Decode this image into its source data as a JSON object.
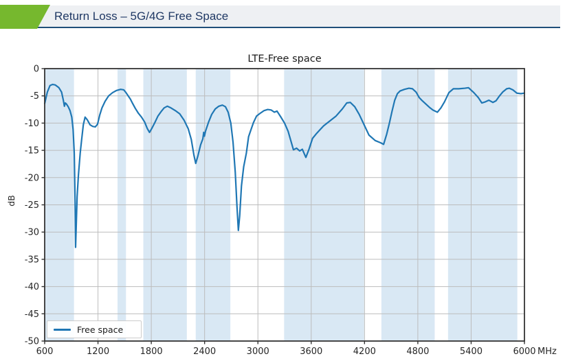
{
  "header": {
    "title": "Return Loss – 5G/4G Free Space",
    "accent_color": "#76b82e",
    "bar_color": "#eef0f3",
    "underline_color": "#1f4e79",
    "text_color": "#1f3864"
  },
  "chart_data": {
    "type": "line",
    "title": "LTE-Free space",
    "ylabel": "dB",
    "x_unit": "MHz",
    "xlim": [
      600,
      6000
    ],
    "ylim": [
      -50,
      0
    ],
    "grid": true,
    "x_ticks": [
      600,
      1200,
      1800,
      2400,
      3000,
      3600,
      4200,
      4800,
      5400,
      6000
    ],
    "y_ticks": [
      0,
      -5,
      -10,
      -15,
      -20,
      -25,
      -30,
      -35,
      -40,
      -45,
      -50
    ],
    "legend": {
      "position": "lower left",
      "entries": [
        "Free space"
      ]
    },
    "line_color": "#1f77b4",
    "band_color": "#d9e8f4",
    "grid_color": "#bcbcbc",
    "spine_color": "#333333",
    "tick_text_color": "#262626",
    "shaded_bands_mhz": [
      [
        600,
        930
      ],
      [
        1420,
        1515
      ],
      [
        1710,
        2200
      ],
      [
        2300,
        2690
      ],
      [
        3295,
        4195
      ],
      [
        4390,
        4990
      ],
      [
        5140,
        5920
      ]
    ],
    "series": [
      {
        "name": "Free space",
        "points": [
          [
            600,
            -6.4
          ],
          [
            630,
            -4.3
          ],
          [
            660,
            -3.1
          ],
          [
            690,
            -2.9
          ],
          [
            720,
            -3.0
          ],
          [
            760,
            -3.5
          ],
          [
            790,
            -4.3
          ],
          [
            810,
            -5.8
          ],
          [
            822,
            -6.9
          ],
          [
            832,
            -6.3
          ],
          [
            845,
            -6.5
          ],
          [
            865,
            -7.0
          ],
          [
            885,
            -7.7
          ],
          [
            905,
            -8.9
          ],
          [
            920,
            -11.2
          ],
          [
            933,
            -15.5
          ],
          [
            942,
            -24.0
          ],
          [
            948,
            -32.8
          ],
          [
            955,
            -29.0
          ],
          [
            965,
            -23.5
          ],
          [
            980,
            -19.5
          ],
          [
            1000,
            -15.5
          ],
          [
            1015,
            -13.2
          ],
          [
            1035,
            -10.3
          ],
          [
            1055,
            -8.9
          ],
          [
            1080,
            -9.4
          ],
          [
            1110,
            -10.3
          ],
          [
            1140,
            -10.6
          ],
          [
            1170,
            -10.7
          ],
          [
            1195,
            -10.2
          ],
          [
            1220,
            -8.5
          ],
          [
            1245,
            -7.2
          ],
          [
            1280,
            -6.0
          ],
          [
            1320,
            -5.0
          ],
          [
            1365,
            -4.4
          ],
          [
            1410,
            -4.0
          ],
          [
            1455,
            -3.8
          ],
          [
            1490,
            -3.9
          ],
          [
            1515,
            -4.4
          ],
          [
            1540,
            -5.0
          ],
          [
            1565,
            -5.6
          ],
          [
            1590,
            -6.4
          ],
          [
            1620,
            -7.3
          ],
          [
            1655,
            -8.2
          ],
          [
            1690,
            -8.9
          ],
          [
            1725,
            -9.8
          ],
          [
            1755,
            -11.0
          ],
          [
            1780,
            -11.7
          ],
          [
            1805,
            -11.0
          ],
          [
            1840,
            -9.9
          ],
          [
            1875,
            -8.7
          ],
          [
            1910,
            -7.9
          ],
          [
            1945,
            -7.2
          ],
          [
            1980,
            -6.9
          ],
          [
            2020,
            -7.2
          ],
          [
            2070,
            -7.7
          ],
          [
            2120,
            -8.3
          ],
          [
            2170,
            -9.5
          ],
          [
            2215,
            -11.0
          ],
          [
            2250,
            -13.0
          ],
          [
            2280,
            -15.9
          ],
          [
            2300,
            -17.4
          ],
          [
            2325,
            -16.0
          ],
          [
            2355,
            -14.0
          ],
          [
            2380,
            -12.9
          ],
          [
            2390,
            -11.7
          ],
          [
            2398,
            -12.4
          ],
          [
            2410,
            -11.5
          ],
          [
            2445,
            -9.8
          ],
          [
            2480,
            -8.4
          ],
          [
            2520,
            -7.4
          ],
          [
            2560,
            -6.9
          ],
          [
            2600,
            -6.7
          ],
          [
            2635,
            -7.0
          ],
          [
            2665,
            -8.0
          ],
          [
            2695,
            -10.0
          ],
          [
            2720,
            -13.5
          ],
          [
            2745,
            -19.0
          ],
          [
            2765,
            -25.5
          ],
          [
            2780,
            -29.7
          ],
          [
            2795,
            -27.0
          ],
          [
            2815,
            -21.5
          ],
          [
            2840,
            -18.0
          ],
          [
            2870,
            -15.5
          ],
          [
            2895,
            -12.5
          ],
          [
            2920,
            -11.3
          ],
          [
            2950,
            -9.9
          ],
          [
            2985,
            -8.7
          ],
          [
            3025,
            -8.2
          ],
          [
            3070,
            -7.7
          ],
          [
            3110,
            -7.5
          ],
          [
            3150,
            -7.6
          ],
          [
            3185,
            -8.0
          ],
          [
            3215,
            -7.8
          ],
          [
            3255,
            -8.8
          ],
          [
            3300,
            -10.0
          ],
          [
            3340,
            -11.5
          ],
          [
            3370,
            -13.2
          ],
          [
            3400,
            -14.9
          ],
          [
            3435,
            -14.6
          ],
          [
            3470,
            -15.1
          ],
          [
            3500,
            -14.8
          ],
          [
            3540,
            -16.3
          ],
          [
            3575,
            -14.8
          ],
          [
            3615,
            -12.8
          ],
          [
            3655,
            -12.0
          ],
          [
            3700,
            -11.2
          ],
          [
            3740,
            -10.5
          ],
          [
            3810,
            -9.6
          ],
          [
            3880,
            -8.7
          ],
          [
            3950,
            -7.4
          ],
          [
            4000,
            -6.3
          ],
          [
            4040,
            -6.2
          ],
          [
            4090,
            -7.0
          ],
          [
            4140,
            -8.4
          ],
          [
            4195,
            -10.3
          ],
          [
            4250,
            -12.2
          ],
          [
            4320,
            -13.2
          ],
          [
            4380,
            -13.6
          ],
          [
            4415,
            -13.9
          ],
          [
            4450,
            -12.0
          ],
          [
            4480,
            -10.0
          ],
          [
            4510,
            -7.8
          ],
          [
            4540,
            -5.8
          ],
          [
            4570,
            -4.6
          ],
          [
            4600,
            -4.1
          ],
          [
            4650,
            -3.8
          ],
          [
            4700,
            -3.6
          ],
          [
            4740,
            -3.7
          ],
          [
            4780,
            -4.3
          ],
          [
            4815,
            -5.3
          ],
          [
            4850,
            -5.9
          ],
          [
            4890,
            -6.5
          ],
          [
            4930,
            -7.1
          ],
          [
            4970,
            -7.6
          ],
          [
            5020,
            -8.0
          ],
          [
            5060,
            -7.2
          ],
          [
            5100,
            -6.1
          ],
          [
            5150,
            -4.4
          ],
          [
            5200,
            -3.7
          ],
          [
            5260,
            -3.7
          ],
          [
            5330,
            -3.6
          ],
          [
            5370,
            -3.5
          ],
          [
            5430,
            -4.4
          ],
          [
            5480,
            -5.3
          ],
          [
            5520,
            -6.3
          ],
          [
            5560,
            -6.1
          ],
          [
            5600,
            -5.8
          ],
          [
            5645,
            -6.2
          ],
          [
            5680,
            -5.9
          ],
          [
            5715,
            -5.1
          ],
          [
            5755,
            -4.3
          ],
          [
            5800,
            -3.7
          ],
          [
            5830,
            -3.6
          ],
          [
            5870,
            -3.9
          ],
          [
            5915,
            -4.5
          ],
          [
            5960,
            -4.6
          ],
          [
            6000,
            -4.5
          ]
        ]
      }
    ]
  }
}
